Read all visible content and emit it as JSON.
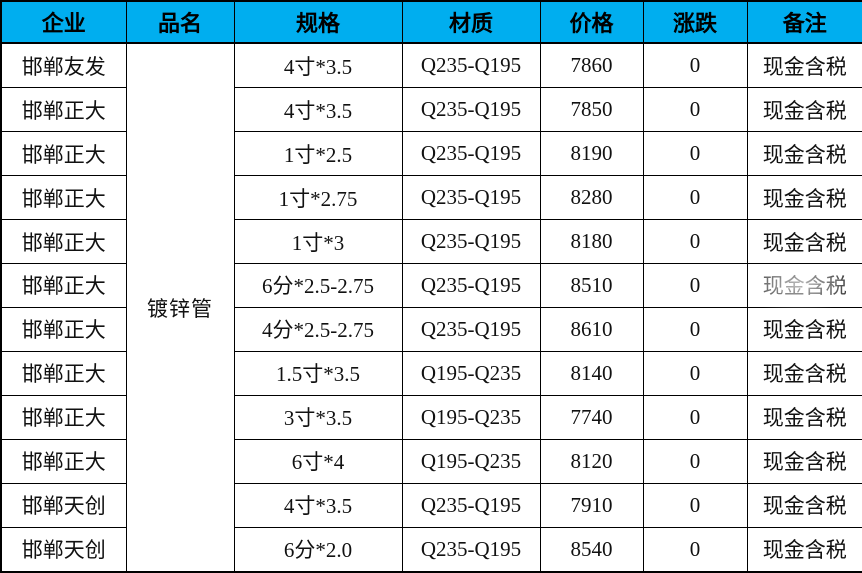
{
  "table": {
    "headers": [
      "企业",
      "品名",
      "规格",
      "材质",
      "价格",
      "涨跌",
      "备注"
    ],
    "product_name": "镀锌管",
    "rows": [
      {
        "company": "邯郸友发",
        "spec": "4寸*3.5",
        "material": "Q235-Q195",
        "price": "7860",
        "change": "0",
        "note": "现金含税"
      },
      {
        "company": "邯郸正大",
        "spec": "4寸*3.5",
        "material": "Q235-Q195",
        "price": "7850",
        "change": "0",
        "note": "现金含税"
      },
      {
        "company": "邯郸正大",
        "spec": "1寸*2.5",
        "material": "Q235-Q195",
        "price": "8190",
        "change": "0",
        "note": "现金含税"
      },
      {
        "company": "邯郸正大",
        "spec": "1寸*2.75",
        "material": "Q235-Q195",
        "price": "8280",
        "change": "0",
        "note": "现金含税"
      },
      {
        "company": "邯郸正大",
        "spec": "1寸*3",
        "material": "Q235-Q195",
        "price": "8180",
        "change": "0",
        "note": "现金含税"
      },
      {
        "company": "邯郸正大",
        "spec": "6分*2.5-2.75",
        "material": "Q235-Q195",
        "price": "8510",
        "change": "0",
        "note": "现金含税"
      },
      {
        "company": "邯郸正大",
        "spec": "4分*2.5-2.75",
        "material": "Q235-Q195",
        "price": "8610",
        "change": "0",
        "note": "现金含税"
      },
      {
        "company": "邯郸正大",
        "spec": "1.5寸*3.5",
        "material": "Q195-Q235",
        "price": "8140",
        "change": "0",
        "note": "现金含税"
      },
      {
        "company": "邯郸正大",
        "spec": "3寸*3.5",
        "material": "Q195-Q235",
        "price": "7740",
        "change": "0",
        "note": "现金含税"
      },
      {
        "company": "邯郸正大",
        "spec": "6寸*4",
        "material": "Q195-Q235",
        "price": "8120",
        "change": "0",
        "note": "现金含税"
      },
      {
        "company": "邯郸天创",
        "spec": "4寸*3.5",
        "material": "Q235-Q195",
        "price": "7910",
        "change": "0",
        "note": "现金含税"
      },
      {
        "company": "邯郸天创",
        "spec": "6分*2.0",
        "material": "Q235-Q195",
        "price": "8540",
        "change": "0",
        "note": "现金含税"
      }
    ],
    "colors": {
      "header_bg": "#00AEEF",
      "border": "#000000",
      "text": "#111111",
      "row_bg": "#FFFFFF"
    }
  }
}
